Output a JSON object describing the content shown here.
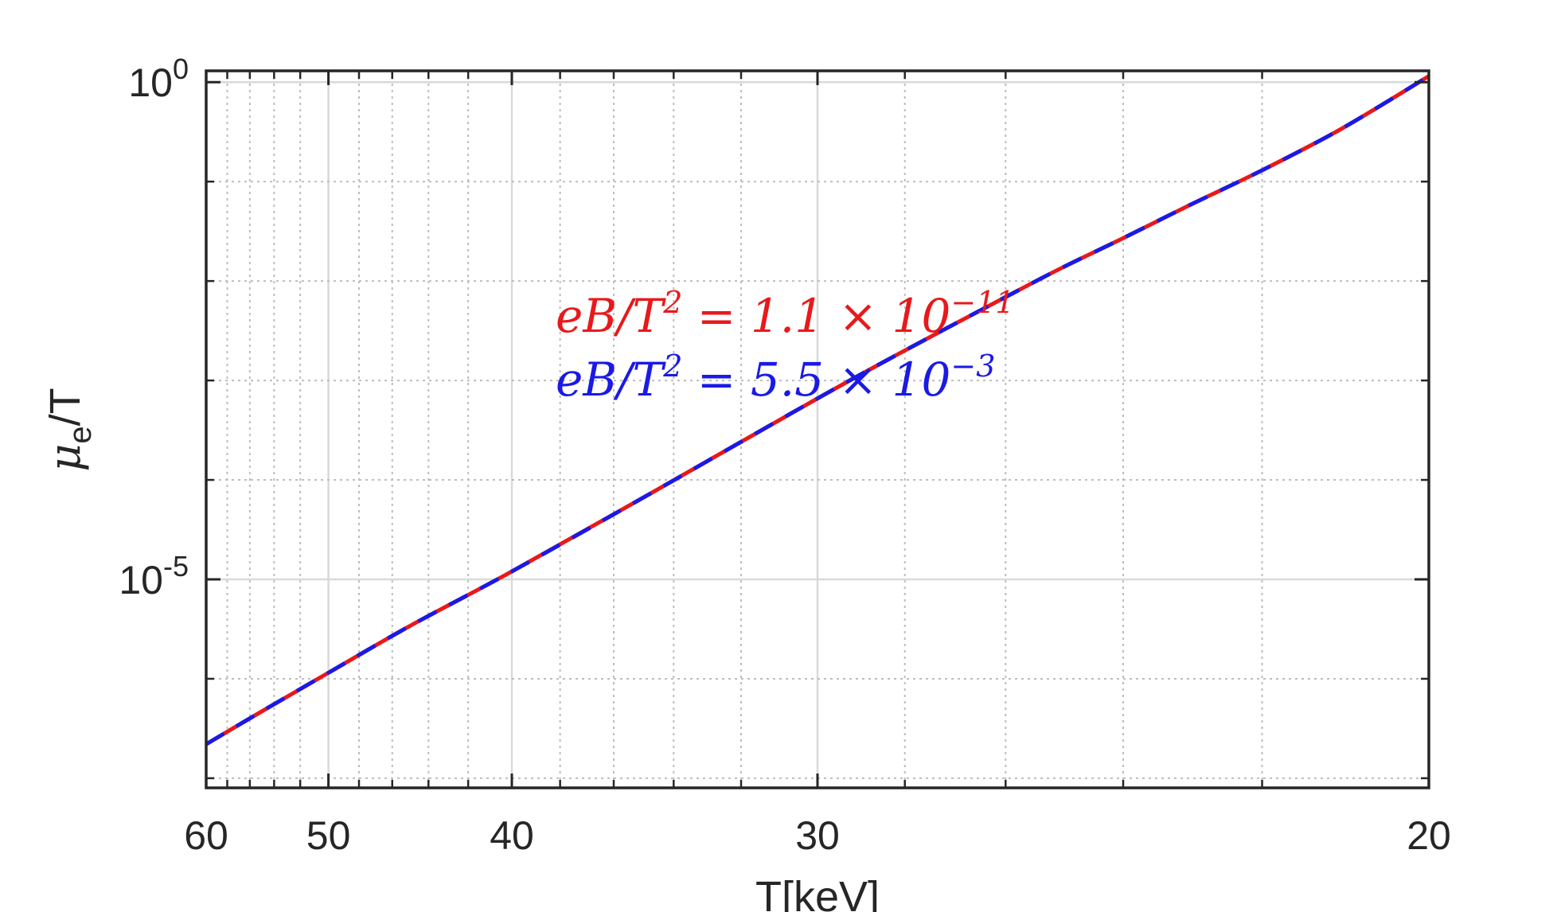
{
  "chart_data": {
    "type": "line",
    "title": "",
    "xlabel": "T[keV]",
    "ylabel_main": "μ",
    "ylabel_sub": "e",
    "ylabel_tail": "/T",
    "xscale": "reciprocal",
    "x_reversed": true,
    "yscale": "log",
    "xlim": [
      60,
      20
    ],
    "ylim": [
      8e-08,
      1.3
    ],
    "x_ticks": [
      60,
      50,
      40,
      30,
      20
    ],
    "x_tick_labels": [
      "60",
      "50",
      "40",
      "30",
      "20"
    ],
    "y_ticks": [
      1e-05,
      1
    ],
    "y_tick_labels": [
      {
        "base": "10",
        "exp": "-5",
        "value": 1e-05
      },
      {
        "base": "10",
        "exp": "0",
        "value": 1
      }
    ],
    "grid": true,
    "annotations": [
      {
        "text_main": "eB/T",
        "sup1": "2",
        "text_mid": " = 1.1 × 10",
        "sup2": "−11",
        "color": "#e8191b"
      },
      {
        "text_main": "eB/T",
        "sup1": "2",
        "text_mid": " = 5.5 × 10",
        "sup2": "−3",
        "color": "#1a1ae6"
      }
    ],
    "series": [
      {
        "color": "#e8191b",
        "style": "solid",
        "x": [
          60,
          55,
          50,
          45,
          40,
          35,
          30,
          28,
          26,
          25,
          24,
          23,
          22,
          21,
          20
        ],
        "y": [
          2.2e-07,
          4.7e-07,
          1.15e-06,
          3.4e-06,
          1.2e-05,
          6.6e-05,
          0.00066,
          0.002,
          0.0069,
          0.0136,
          0.027,
          0.058,
          0.13,
          0.34,
          1.15
        ]
      },
      {
        "color": "#1a1ae6",
        "style": "dashed",
        "x": [
          60,
          55,
          50,
          45,
          40,
          35,
          30,
          28,
          26,
          25,
          24,
          23,
          22,
          21,
          20
        ],
        "y": [
          2.2e-07,
          4.7e-07,
          1.15e-06,
          3.4e-06,
          1.2e-05,
          6.6e-05,
          0.00066,
          0.002,
          0.0069,
          0.0136,
          0.027,
          0.058,
          0.13,
          0.34,
          1.15
        ]
      }
    ]
  }
}
